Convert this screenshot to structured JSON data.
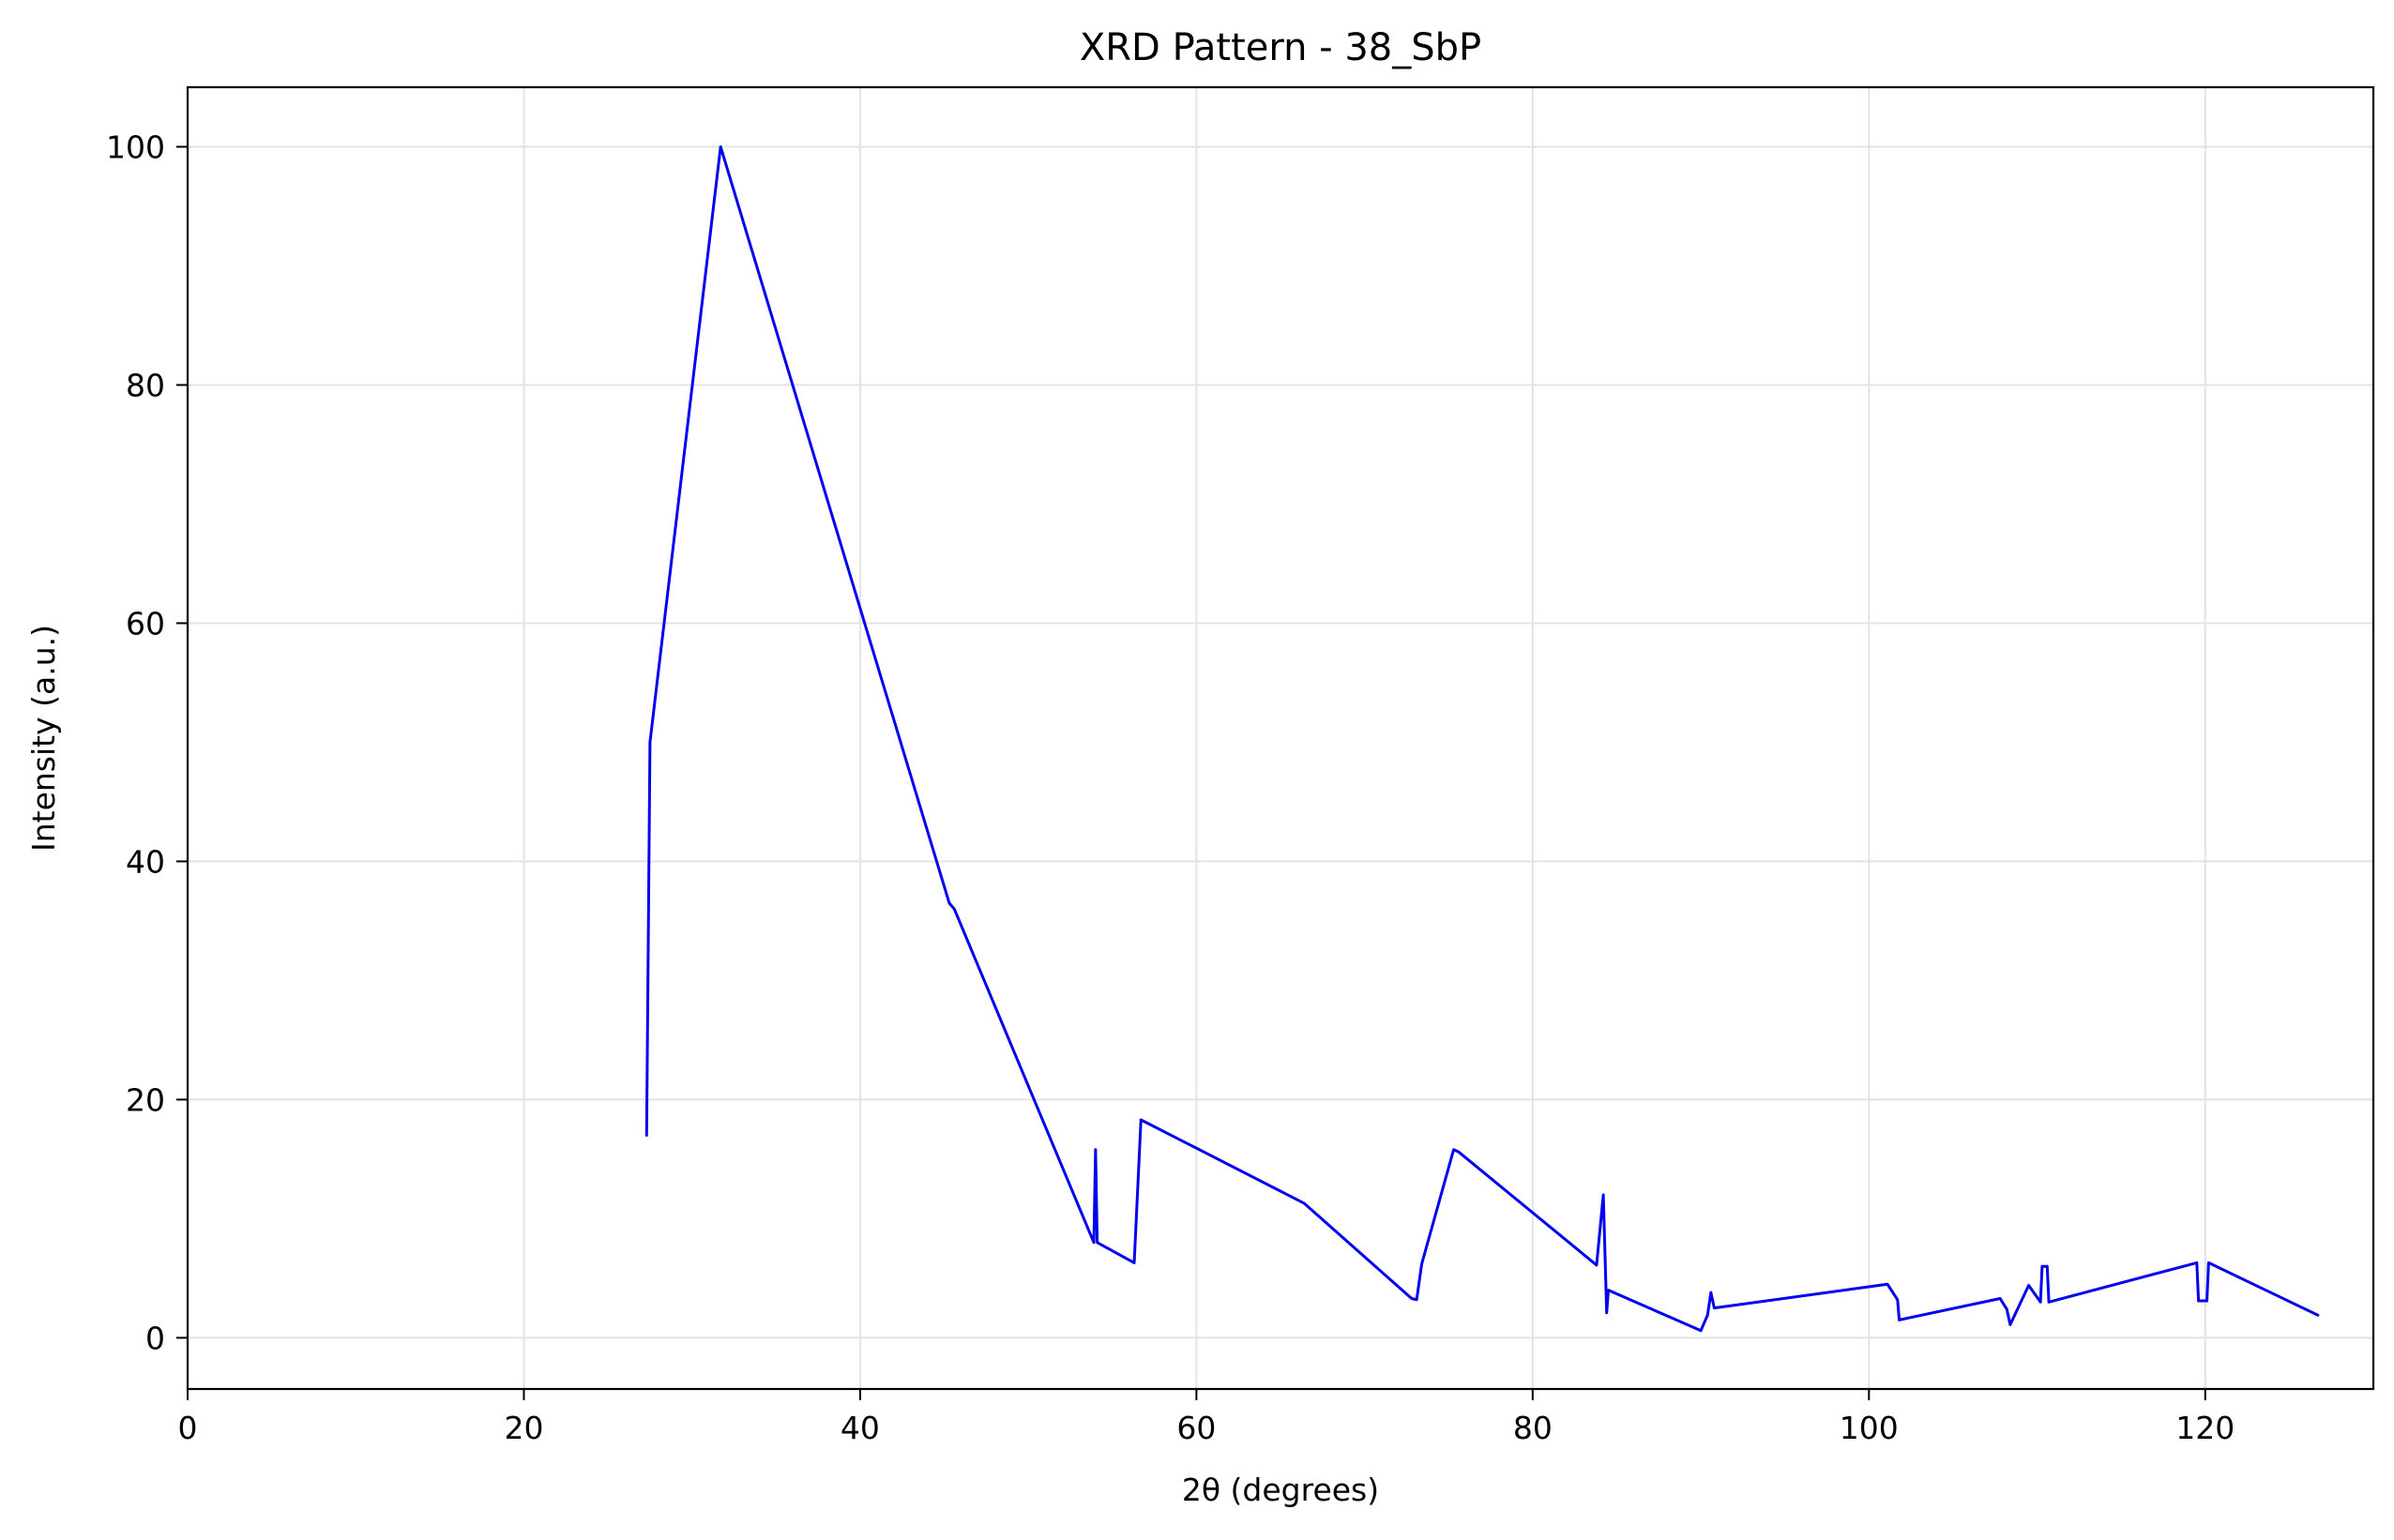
{
  "chart_data": {
    "type": "line",
    "title": "XRD Pattern - 38_SbP",
    "xlabel": "2θ (degrees)",
    "ylabel": "Intensity (a.u.)",
    "xlim": [
      0,
      130
    ],
    "ylim": [
      -4.3,
      105
    ],
    "xticks": [
      0,
      20,
      40,
      60,
      80,
      100,
      120
    ],
    "yticks": [
      0,
      20,
      40,
      60,
      80,
      100
    ],
    "grid": true,
    "series": [
      {
        "color": "#0000ee",
        "x": [
          27.3,
          27.5,
          31.7,
          45.3,
          45.6,
          53.9,
          54.0,
          54.1,
          56.3,
          56.7,
          66.4,
          72.8,
          73.1,
          73.4,
          75.3,
          75.6,
          83.8,
          84.2,
          84.4,
          84.5,
          90.0,
          90.4,
          90.6,
          90.8,
          101.1,
          101.7,
          101.8,
          107.8,
          108.2,
          108.4,
          109.5,
          110.2,
          110.3,
          110.6,
          110.7,
          119.5,
          119.6,
          120.1,
          120.2,
          126.7
        ],
        "y": [
          17.0,
          50.0,
          100.0,
          36.5,
          36.0,
          8.0,
          15.8,
          8.0,
          6.3,
          18.3,
          11.3,
          3.3,
          3.2,
          6.2,
          15.8,
          15.6,
          6.1,
          12.0,
          2.1,
          4.0,
          0.6,
          1.9,
          3.8,
          2.5,
          4.5,
          3.2,
          1.5,
          3.3,
          2.4,
          1.1,
          4.4,
          3.0,
          6.0,
          6.0,
          3.0,
          6.3,
          3.1,
          3.1,
          6.3,
          1.9
        ]
      }
    ]
  }
}
